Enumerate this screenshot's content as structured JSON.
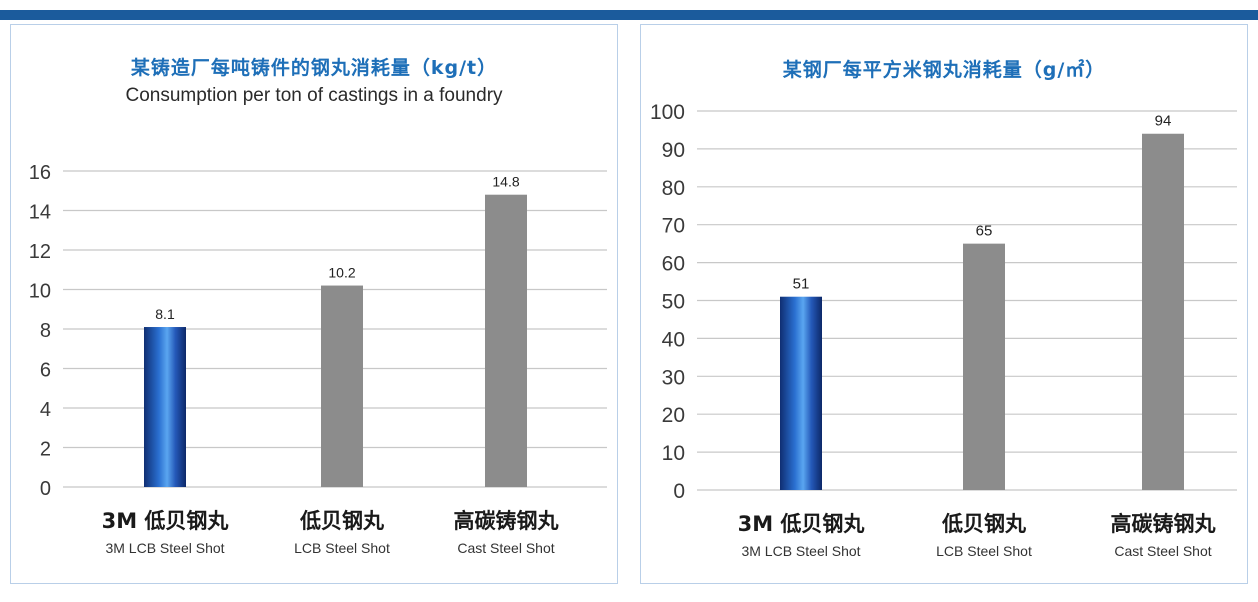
{
  "chart_data": [
    {
      "type": "bar",
      "title": "某铸造厂每吨铸件的钢丸消耗量（kg/t）",
      "subtitle": "Consumption per ton of castings in a foundry",
      "categories": [
        {
          "cn": "3M 低贝钢丸",
          "en": "3M LCB Steel Shot"
        },
        {
          "cn": "低贝钢丸",
          "en": "LCB Steel Shot"
        },
        {
          "cn": "高碳铸钢丸",
          "en": "Cast Steel Shot"
        }
      ],
      "values": [
        8.1,
        10.2,
        14.8
      ],
      "value_labels": [
        "8.1",
        "10.2",
        "14.8"
      ],
      "ylim": [
        0,
        16
      ],
      "yticks": [
        "0",
        "2",
        "4",
        "6",
        "8",
        "10",
        "12",
        "14",
        "16"
      ],
      "grid": true,
      "bar_colors": [
        "#1f4fa0",
        "#8c8c8c",
        "#8c8c8c"
      ]
    },
    {
      "type": "bar",
      "title": "某钢厂每平方米钢丸消耗量（g/㎡）",
      "categories": [
        {
          "cn": "3M 低贝钢丸",
          "en": "3M LCB Steel Shot"
        },
        {
          "cn": "低贝钢丸",
          "en": "LCB Steel Shot"
        },
        {
          "cn": "高碳铸钢丸",
          "en": "Cast Steel Shot"
        }
      ],
      "values": [
        51,
        65,
        94
      ],
      "value_labels": [
        "51",
        "65",
        "94"
      ],
      "ylim": [
        0,
        100
      ],
      "yticks": [
        "0",
        "10",
        "20",
        "30",
        "40",
        "50",
        "60",
        "70",
        "80",
        "90",
        "100"
      ],
      "grid": true,
      "bar_colors": [
        "#1f4fa0",
        "#8c8c8c",
        "#8c8c8c"
      ]
    }
  ]
}
